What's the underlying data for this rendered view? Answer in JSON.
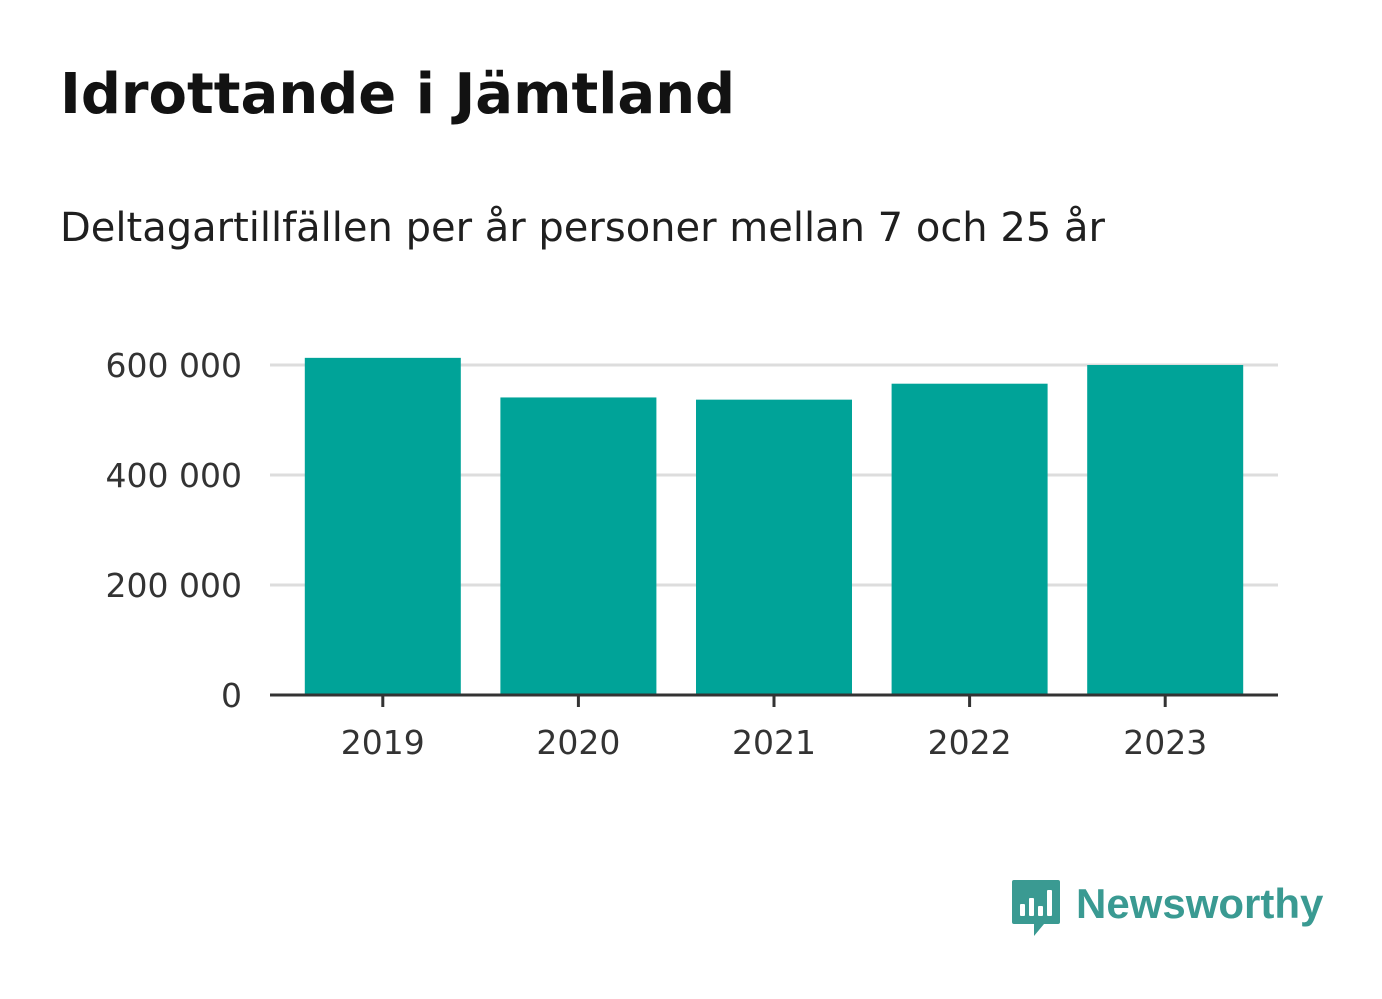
{
  "header": {
    "title": "Idrottande i Jämtland",
    "subtitle": "Deltagartillfällen per år personer mellan 7 och 25 år"
  },
  "brand": {
    "name": "Newsworthy",
    "icon": "newsworthy-logo-icon",
    "color": "#3a9a92"
  },
  "colors": {
    "bar": "#00a398",
    "grid": "#dddddd",
    "axis": "#333333",
    "text": "#333333"
  },
  "chart_data": {
    "type": "bar",
    "title": "Idrottande i Jämtland",
    "subtitle": "Deltagartillfällen per år personer mellan 7 och 25 år",
    "xlabel": "",
    "ylabel": "",
    "categories": [
      "2019",
      "2020",
      "2021",
      "2022",
      "2023"
    ],
    "values": [
      613000,
      541000,
      537000,
      566000,
      600000
    ],
    "ylim": [
      0,
      600000
    ],
    "yticks": [
      0,
      200000,
      400000,
      600000
    ],
    "ytick_labels": [
      "0",
      "200 000",
      "400 000",
      "600 000"
    ],
    "grid": true,
    "legend": "none"
  }
}
